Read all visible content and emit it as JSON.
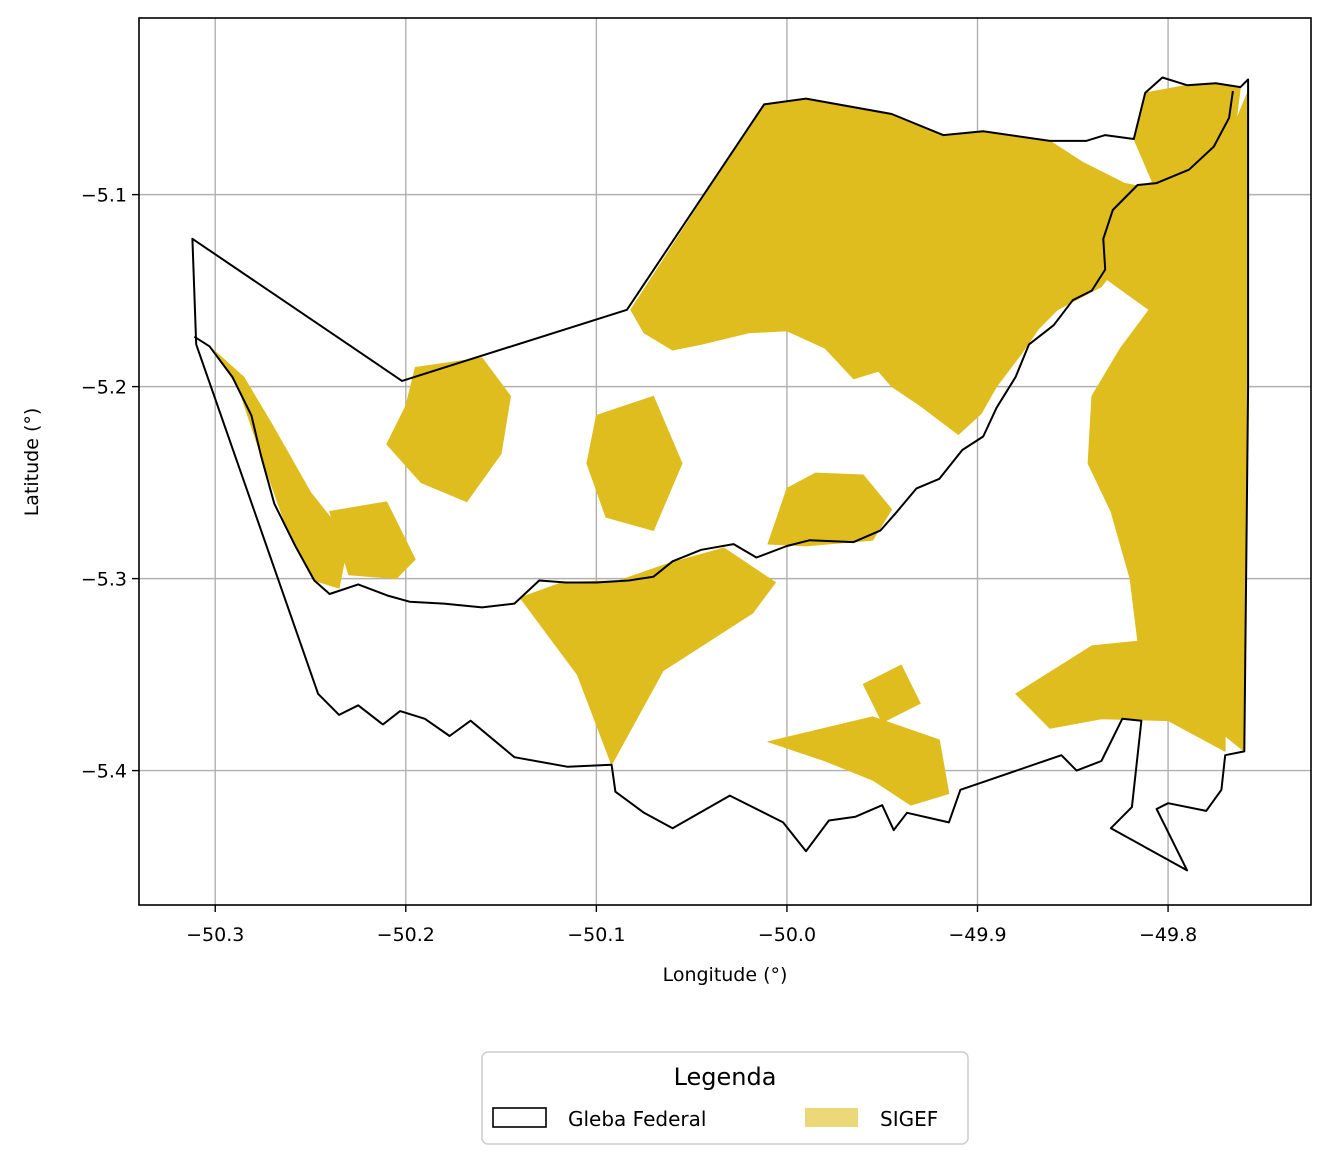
{
  "chart_data": {
    "type": "map",
    "title": "",
    "xlabel": "Longitude (°)",
    "ylabel": "Latitude (°)",
    "xlim": [
      -50.34,
      -49.725
    ],
    "ylim": [
      -5.47,
      -5.008
    ],
    "grid": true,
    "x_ticks": [
      {
        "value": -50.3,
        "label": "−50.3"
      },
      {
        "value": -50.2,
        "label": "−50.2"
      },
      {
        "value": -50.1,
        "label": "−50.1"
      },
      {
        "value": -50.0,
        "label": "−50.0"
      },
      {
        "value": -49.9,
        "label": "−49.9"
      },
      {
        "value": -49.8,
        "label": "−49.8"
      }
    ],
    "y_ticks": [
      {
        "value": -5.1,
        "label": "−5.1"
      },
      {
        "value": -5.2,
        "label": "−5.2"
      },
      {
        "value": -5.3,
        "label": "−5.3"
      },
      {
        "value": -5.4,
        "label": "−5.4"
      }
    ],
    "legend": {
      "title": "Legenda",
      "placement": "bottom-center",
      "entries": [
        {
          "label": "Gleba Federal",
          "style": "outline",
          "color": "#000000"
        },
        {
          "label": "SIGEF",
          "style": "fill",
          "color": "#dfbd1f"
        }
      ]
    },
    "colors": {
      "sigef_fill": "#dfbd1f",
      "gleba_stroke": "#000000",
      "grid": "#b0b0b0"
    },
    "layers": {
      "gleba_federal": [
        [
          -50.312,
          -5.123
        ],
        [
          -50.202,
          -5.197
        ],
        [
          -50.084,
          -5.16
        ],
        [
          -50.012,
          -5.053
        ],
        [
          -49.99,
          -5.05
        ],
        [
          -49.945,
          -5.058
        ],
        [
          -49.918,
          -5.069
        ],
        [
          -49.897,
          -5.067
        ],
        [
          -49.862,
          -5.072
        ],
        [
          -49.843,
          -5.072
        ],
        [
          -49.833,
          -5.069
        ],
        [
          -49.818,
          -5.071
        ],
        [
          -49.812,
          -5.047
        ],
        [
          -49.803,
          -5.039
        ],
        [
          -49.79,
          -5.043
        ],
        [
          -49.775,
          -5.042
        ],
        [
          -49.762,
          -5.044
        ],
        [
          -49.758,
          -5.04
        ],
        [
          -49.758,
          -5.2
        ],
        [
          -49.76,
          -5.39
        ],
        [
          -49.77,
          -5.392
        ],
        [
          -49.772,
          -5.41
        ],
        [
          -49.78,
          -5.421
        ],
        [
          -49.8,
          -5.417
        ],
        [
          -49.806,
          -5.42
        ],
        [
          -49.802,
          -5.428
        ],
        [
          -49.79,
          -5.452
        ],
        [
          -49.83,
          -5.43
        ],
        [
          -49.819,
          -5.419
        ],
        [
          -49.814,
          -5.374
        ],
        [
          -49.824,
          -5.373
        ],
        [
          -49.835,
          -5.395
        ],
        [
          -49.848,
          -5.4
        ],
        [
          -49.856,
          -5.392
        ],
        [
          -49.909,
          -5.41
        ],
        [
          -49.915,
          -5.427
        ],
        [
          -49.937,
          -5.422
        ],
        [
          -49.944,
          -5.431
        ],
        [
          -49.95,
          -5.418
        ],
        [
          -49.964,
          -5.424
        ],
        [
          -49.978,
          -5.426
        ],
        [
          -49.99,
          -5.442
        ],
        [
          -50.002,
          -5.427
        ],
        [
          -50.03,
          -5.413
        ],
        [
          -50.06,
          -5.43
        ],
        [
          -50.075,
          -5.422
        ],
        [
          -50.09,
          -5.411
        ],
        [
          -50.092,
          -5.397
        ],
        [
          -50.115,
          -5.398
        ],
        [
          -50.143,
          -5.393
        ],
        [
          -50.166,
          -5.374
        ],
        [
          -50.177,
          -5.382
        ],
        [
          -50.19,
          -5.373
        ],
        [
          -50.203,
          -5.369
        ],
        [
          -50.212,
          -5.376
        ],
        [
          -50.225,
          -5.366
        ],
        [
          -50.235,
          -5.371
        ],
        [
          -50.246,
          -5.36
        ],
        [
          -50.31,
          -5.178
        ],
        [
          -50.312,
          -5.123
        ]
      ],
      "internal_boundary": [
        [
          -50.311,
          -5.174
        ],
        [
          -50.303,
          -5.179
        ],
        [
          -50.291,
          -5.195
        ],
        [
          -50.281,
          -5.215
        ],
        [
          -50.276,
          -5.236
        ],
        [
          -50.269,
          -5.261
        ],
        [
          -50.258,
          -5.283
        ],
        [
          -50.248,
          -5.301
        ],
        [
          -50.24,
          -5.308
        ],
        [
          -50.225,
          -5.303
        ],
        [
          -50.209,
          -5.309
        ],
        [
          -50.198,
          -5.312
        ],
        [
          -50.18,
          -5.313
        ],
        [
          -50.16,
          -5.315
        ],
        [
          -50.143,
          -5.313
        ],
        [
          -50.13,
          -5.301
        ],
        [
          -50.116,
          -5.302
        ],
        [
          -50.1,
          -5.302
        ],
        [
          -50.083,
          -5.301
        ],
        [
          -50.07,
          -5.299
        ],
        [
          -50.06,
          -5.291
        ],
        [
          -50.045,
          -5.285
        ],
        [
          -50.028,
          -5.282
        ],
        [
          -50.016,
          -5.289
        ],
        [
          -50.0,
          -5.283
        ],
        [
          -49.988,
          -5.28
        ],
        [
          -49.965,
          -5.281
        ],
        [
          -49.951,
          -5.275
        ],
        [
          -49.943,
          -5.266
        ],
        [
          -49.932,
          -5.253
        ],
        [
          -49.92,
          -5.248
        ],
        [
          -49.908,
          -5.233
        ],
        [
          -49.897,
          -5.226
        ],
        [
          -49.89,
          -5.211
        ],
        [
          -49.88,
          -5.195
        ],
        [
          -49.873,
          -5.178
        ],
        [
          -49.86,
          -5.168
        ],
        [
          -49.85,
          -5.155
        ],
        [
          -49.84,
          -5.15
        ],
        [
          -49.833,
          -5.139
        ],
        [
          -49.834,
          -5.123
        ],
        [
          -49.829,
          -5.108
        ],
        [
          -49.816,
          -5.095
        ],
        [
          -49.806,
          -5.094
        ],
        [
          -49.789,
          -5.087
        ],
        [
          -49.776,
          -5.075
        ],
        [
          -49.768,
          -5.06
        ],
        [
          -49.766,
          -5.046
        ]
      ],
      "sigef": [
        [
          [
            -50.082,
            -5.16
          ],
          [
            -50.012,
            -5.053
          ],
          [
            -49.99,
            -5.05
          ],
          [
            -49.945,
            -5.058
          ],
          [
            -49.918,
            -5.069
          ],
          [
            -49.897,
            -5.067
          ],
          [
            -49.862,
            -5.072
          ],
          [
            -49.845,
            -5.083
          ],
          [
            -49.823,
            -5.094
          ],
          [
            -49.808,
            -5.097
          ],
          [
            -49.812,
            -5.12
          ],
          [
            -49.825,
            -5.135
          ],
          [
            -49.835,
            -5.148
          ],
          [
            -49.858,
            -5.16
          ],
          [
            -49.868,
            -5.17
          ],
          [
            -49.877,
            -5.183
          ],
          [
            -49.89,
            -5.2
          ],
          [
            -49.898,
            -5.214
          ],
          [
            -49.91,
            -5.225
          ],
          [
            -49.93,
            -5.21
          ],
          [
            -49.945,
            -5.2
          ],
          [
            -49.952,
            -5.192
          ],
          [
            -49.965,
            -5.196
          ],
          [
            -49.98,
            -5.18
          ],
          [
            -50.0,
            -5.171
          ],
          [
            -50.02,
            -5.172
          ],
          [
            -50.045,
            -5.178
          ],
          [
            -50.06,
            -5.181
          ],
          [
            -50.075,
            -5.172
          ]
        ],
        [
          [
            -49.818,
            -5.071
          ],
          [
            -49.812,
            -5.047
          ],
          [
            -49.79,
            -5.043
          ],
          [
            -49.775,
            -5.042
          ],
          [
            -49.762,
            -5.044
          ],
          [
            -49.766,
            -5.075
          ],
          [
            -49.776,
            -5.08
          ],
          [
            -49.789,
            -5.09
          ],
          [
            -49.808,
            -5.094
          ]
        ],
        [
          [
            -49.838,
            -5.14
          ],
          [
            -49.828,
            -5.106
          ],
          [
            -49.814,
            -5.095
          ],
          [
            -49.79,
            -5.089
          ],
          [
            -49.77,
            -5.075
          ],
          [
            -49.758,
            -5.046
          ],
          [
            -49.758,
            -5.2
          ],
          [
            -49.76,
            -5.39
          ],
          [
            -49.77,
            -5.382
          ],
          [
            -49.788,
            -5.375
          ],
          [
            -49.8,
            -5.365
          ],
          [
            -49.815,
            -5.34
          ],
          [
            -49.82,
            -5.3
          ],
          [
            -49.83,
            -5.265
          ],
          [
            -49.842,
            -5.24
          ],
          [
            -49.84,
            -5.205
          ],
          [
            -49.825,
            -5.18
          ],
          [
            -49.81,
            -5.16
          ]
        ],
        [
          [
            -50.092,
            -5.397
          ],
          [
            -50.065,
            -5.348
          ],
          [
            -50.018,
            -5.318
          ],
          [
            -50.006,
            -5.302
          ],
          [
            -50.033,
            -5.284
          ],
          [
            -50.062,
            -5.292
          ],
          [
            -50.088,
            -5.301
          ],
          [
            -50.118,
            -5.302
          ],
          [
            -50.14,
            -5.31
          ],
          [
            -50.125,
            -5.33
          ],
          [
            -50.11,
            -5.35
          ]
        ],
        [
          [
            -50.01,
            -5.282
          ],
          [
            -50.0,
            -5.253
          ],
          [
            -49.985,
            -5.245
          ],
          [
            -49.96,
            -5.246
          ],
          [
            -49.945,
            -5.264
          ],
          [
            -49.955,
            -5.28
          ],
          [
            -49.99,
            -5.283
          ]
        ],
        [
          [
            -49.955,
            -5.372
          ],
          [
            -49.92,
            -5.384
          ],
          [
            -49.915,
            -5.412
          ],
          [
            -49.935,
            -5.418
          ],
          [
            -49.955,
            -5.405
          ],
          [
            -49.98,
            -5.395
          ],
          [
            -50.01,
            -5.385
          ]
        ],
        [
          [
            -49.88,
            -5.36
          ],
          [
            -49.84,
            -5.335
          ],
          [
            -49.79,
            -5.33
          ],
          [
            -49.77,
            -5.35
          ],
          [
            -49.77,
            -5.39
          ],
          [
            -49.8,
            -5.374
          ],
          [
            -49.835,
            -5.373
          ],
          [
            -49.862,
            -5.378
          ]
        ],
        [
          [
            -50.303,
            -5.179
          ],
          [
            -50.288,
            -5.2
          ],
          [
            -50.276,
            -5.236
          ],
          [
            -50.262,
            -5.275
          ],
          [
            -50.248,
            -5.301
          ],
          [
            -50.235,
            -5.305
          ],
          [
            -50.23,
            -5.28
          ],
          [
            -50.25,
            -5.255
          ],
          [
            -50.27,
            -5.22
          ],
          [
            -50.285,
            -5.195
          ]
        ],
        [
          [
            -50.195,
            -5.19
          ],
          [
            -50.16,
            -5.185
          ],
          [
            -50.145,
            -5.205
          ],
          [
            -50.15,
            -5.235
          ],
          [
            -50.168,
            -5.26
          ],
          [
            -50.192,
            -5.25
          ],
          [
            -50.21,
            -5.23
          ],
          [
            -50.2,
            -5.21
          ]
        ],
        [
          [
            -50.24,
            -5.265
          ],
          [
            -50.21,
            -5.26
          ],
          [
            -50.195,
            -5.29
          ],
          [
            -50.205,
            -5.3
          ],
          [
            -50.23,
            -5.298
          ]
        ],
        [
          [
            -50.1,
            -5.215
          ],
          [
            -50.07,
            -5.205
          ],
          [
            -50.055,
            -5.24
          ],
          [
            -50.07,
            -5.275
          ],
          [
            -50.095,
            -5.268
          ],
          [
            -50.105,
            -5.24
          ]
        ],
        [
          [
            -49.96,
            -5.355
          ],
          [
            -49.94,
            -5.345
          ],
          [
            -49.93,
            -5.365
          ],
          [
            -49.95,
            -5.375
          ]
        ]
      ]
    }
  }
}
